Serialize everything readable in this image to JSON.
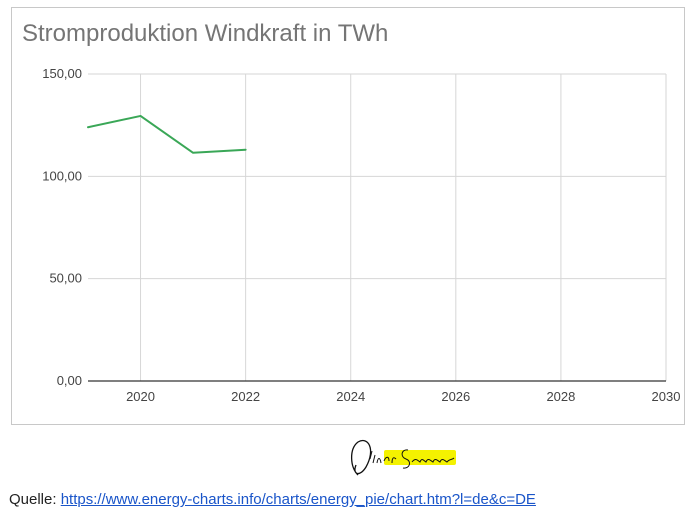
{
  "chart_data": {
    "type": "line",
    "title": "Stromproduktion Windkraft in TWh",
    "xlabel": "",
    "ylabel": "",
    "x": [
      2019,
      2020,
      2021,
      2022
    ],
    "series": [
      {
        "values": [
          124,
          129.5,
          111.5,
          113
        ],
        "color": "#3aa757"
      }
    ],
    "xlim": [
      2019,
      2030
    ],
    "ylim": [
      0,
      150
    ],
    "x_ticks": [
      2020,
      2022,
      2024,
      2026,
      2028,
      2030
    ],
    "x_tick_labels": [
      "2020",
      "2022",
      "2024",
      "2026",
      "2028",
      "2030"
    ],
    "y_ticks": [
      0,
      50,
      100,
      150
    ],
    "y_tick_labels": [
      "0,00",
      "50,00",
      "100,00",
      "150,00"
    ],
    "grid": true,
    "legend": "none"
  },
  "signature": {
    "text": "Oliver Schirmer",
    "highlight_color": "#f4f200"
  },
  "source": {
    "label": "Quelle:",
    "link_text": "https://www.energy-charts.info/charts/energy_pie/chart.htm?l=de&c=DE"
  }
}
